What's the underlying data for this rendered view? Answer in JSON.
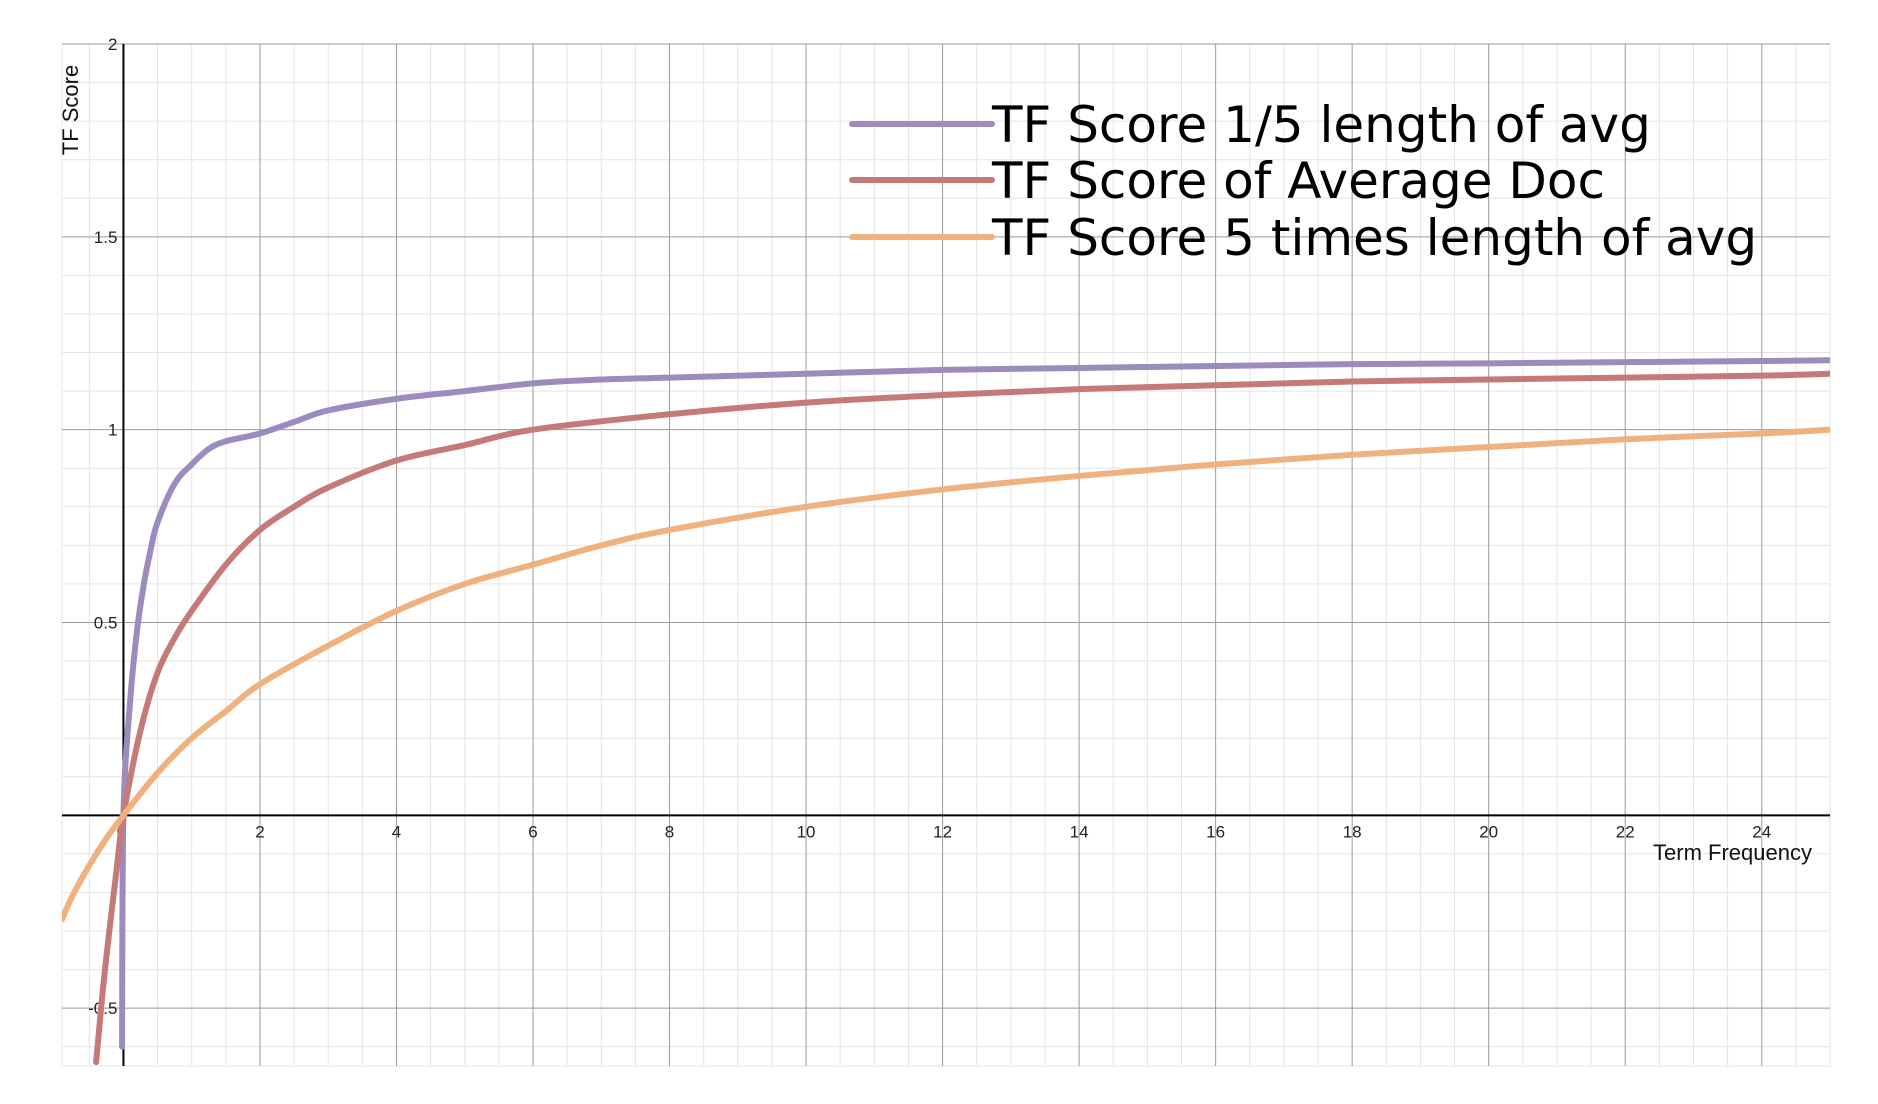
{
  "chart_data": {
    "type": "line",
    "title": "",
    "xlabel": "Term Frequency",
    "ylabel": "TF Score",
    "xlim": [
      -0.9,
      25
    ],
    "ylim": [
      -0.65,
      2.0
    ],
    "grid": true,
    "legend_position": "top-right",
    "x_ticks": [
      "0",
      "2",
      "4",
      "6",
      "8",
      "10",
      "12",
      "14",
      "16",
      "18",
      "20",
      "22",
      "24"
    ],
    "y_ticks": [
      "-0.5",
      "0.5",
      "1",
      "1.5",
      "2"
    ],
    "series": [
      {
        "name": "TF Score 1/5 length of avg",
        "color": "#9b8bbf",
        "x": [
          -0.02,
          0,
          0.1,
          0.2,
          0.3,
          0.4,
          0.5,
          0.75,
          1,
          1.25,
          1.5,
          2,
          2.5,
          3,
          4,
          5,
          6,
          7,
          8,
          10,
          12,
          14,
          16,
          18,
          20,
          22,
          24,
          25
        ],
        "y": [
          -0.6,
          0,
          0.3,
          0.48,
          0.6,
          0.69,
          0.76,
          0.86,
          0.91,
          0.95,
          0.97,
          0.99,
          1.02,
          1.05,
          1.08,
          1.1,
          1.12,
          1.13,
          1.135,
          1.145,
          1.155,
          1.16,
          1.165,
          1.17,
          1.172,
          1.175,
          1.178,
          1.18
        ]
      },
      {
        "name": "TF Score of Average Doc",
        "color": "#c47a78",
        "x": [
          -0.4,
          -0.3,
          -0.2,
          -0.1,
          0,
          0.25,
          0.5,
          0.75,
          1,
          1.5,
          2,
          2.5,
          3,
          4,
          5,
          6,
          8,
          10,
          12,
          14,
          16,
          18,
          20,
          22,
          24,
          25
        ],
        "y": [
          -0.64,
          -0.45,
          -0.29,
          -0.14,
          0,
          0.22,
          0.37,
          0.46,
          0.53,
          0.65,
          0.74,
          0.8,
          0.85,
          0.92,
          0.96,
          1.0,
          1.04,
          1.07,
          1.09,
          1.105,
          1.115,
          1.125,
          1.13,
          1.135,
          1.14,
          1.145
        ]
      },
      {
        "name": "TF Score 5 times length of avg",
        "color": "#efb27e",
        "x": [
          -0.9,
          -0.75,
          -0.5,
          -0.25,
          0,
          0.5,
          1,
          1.5,
          2,
          3,
          4,
          5,
          6,
          7,
          8,
          10,
          12,
          14,
          16,
          18,
          20,
          22,
          24,
          25
        ],
        "y": [
          -0.27,
          -0.21,
          -0.13,
          -0.06,
          0,
          0.11,
          0.2,
          0.27,
          0.34,
          0.44,
          0.53,
          0.6,
          0.65,
          0.7,
          0.74,
          0.8,
          0.845,
          0.88,
          0.91,
          0.935,
          0.955,
          0.975,
          0.99,
          1.0
        ]
      }
    ]
  }
}
